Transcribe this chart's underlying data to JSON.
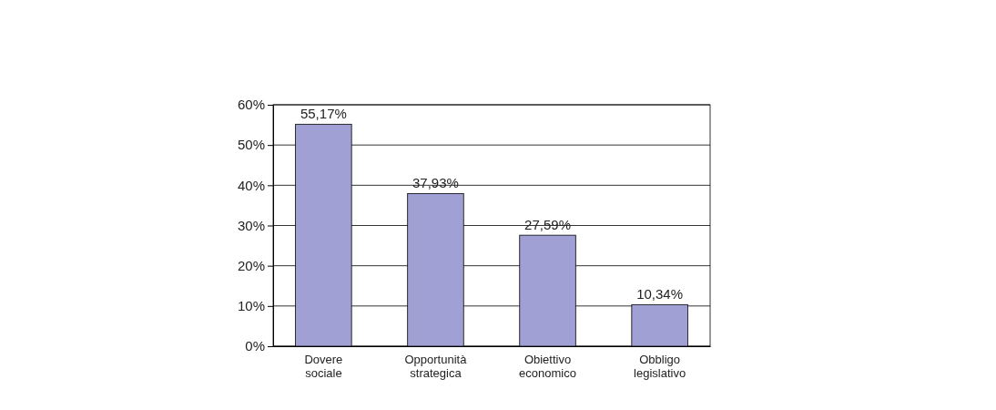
{
  "chart_data": {
    "type": "bar",
    "categories": [
      "Dovere sociale",
      "Opportunità strategica",
      "Obiettivo economico",
      "Obbligo legislativo"
    ],
    "values": [
      55.17,
      37.93,
      27.59,
      10.34
    ],
    "value_labels": [
      "55,17%",
      "37,93%",
      "27,59%",
      "10,34%"
    ],
    "color": "#a0a0d4",
    "ylim": [
      0,
      60
    ],
    "yticks": [
      {
        "value": 0,
        "label": "0%"
      },
      {
        "value": 10,
        "label": "10%"
      },
      {
        "value": 20,
        "label": "20%"
      },
      {
        "value": 30,
        "label": "30%"
      },
      {
        "value": 40,
        "label": "40%"
      },
      {
        "value": 50,
        "label": "50%"
      },
      {
        "value": 60,
        "label": "60%"
      }
    ],
    "grid": "y"
  }
}
